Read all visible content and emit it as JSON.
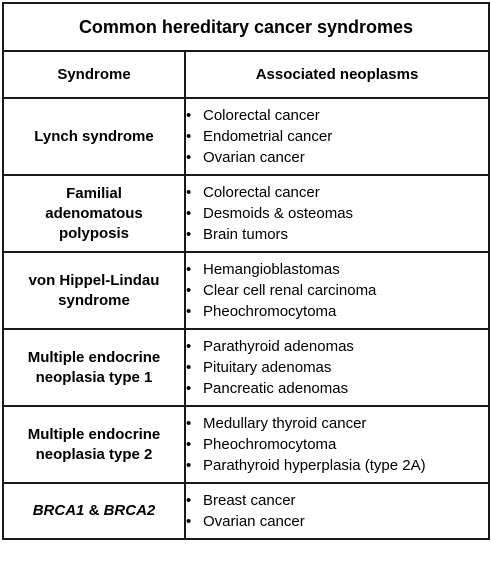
{
  "title": "Common hereditary cancer syndromes",
  "headers": {
    "syndrome": "Syndrome",
    "neoplasms": "Associated neoplasms"
  },
  "rows": [
    {
      "name_parts": [
        "Lynch syndrome"
      ],
      "neoplasms": [
        "Colorectal cancer",
        "Endometrial cancer",
        "Ovarian cancer"
      ]
    },
    {
      "name_parts": [
        "Familial",
        "adenomatous",
        "polyposis"
      ],
      "neoplasms": [
        "Colorectal cancer",
        "Desmoids & osteomas",
        "Brain tumors"
      ]
    },
    {
      "name_parts": [
        "von Hippel-Lindau",
        "syndrome"
      ],
      "neoplasms": [
        "Hemangioblastomas",
        "Clear cell renal carcinoma",
        "Pheochromocytoma"
      ]
    },
    {
      "name_parts": [
        "Multiple endocrine",
        "neoplasia type 1"
      ],
      "neoplasms": [
        "Parathyroid adenomas",
        "Pituitary adenomas",
        "Pancreatic adenomas"
      ]
    },
    {
      "name_parts": [
        "Multiple endocrine",
        "neoplasia type 2"
      ],
      "neoplasms": [
        "Medullary thyroid cancer",
        "Pheochromocytoma",
        "Parathyroid hyperplasia (type 2A)"
      ]
    },
    {
      "name_parts": [
        "BRCA1",
        " & ",
        "BRCA2"
      ],
      "neoplasms": [
        "Breast cancer",
        "Ovarian cancer"
      ]
    }
  ],
  "bullet_glyph": "•"
}
